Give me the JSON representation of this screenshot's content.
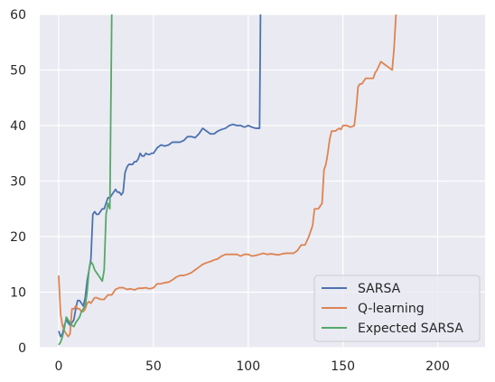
{
  "chart_data": {
    "type": "line",
    "title": "",
    "xlabel": "",
    "ylabel": "",
    "xlim": [
      -10,
      225
    ],
    "ylim": [
      0,
      60
    ],
    "xticks": [
      0,
      50,
      100,
      150,
      200
    ],
    "yticks": [
      0,
      10,
      20,
      30,
      40,
      50,
      60
    ],
    "grid": true,
    "legend": "bottom-right",
    "background": "#EAEAF2",
    "series": [
      {
        "name": "SARSA",
        "color": "#4C72B0",
        "points": [
          [
            0,
            3
          ],
          [
            1,
            2
          ],
          [
            2,
            2.5
          ],
          [
            3,
            4
          ],
          [
            4,
            5
          ],
          [
            5,
            4.5
          ],
          [
            6,
            4
          ],
          [
            7,
            4.5
          ],
          [
            8,
            5
          ],
          [
            9,
            7
          ],
          [
            10,
            8.5
          ],
          [
            11,
            8.5
          ],
          [
            12,
            8
          ],
          [
            13,
            7.5
          ],
          [
            14,
            9
          ],
          [
            15,
            12
          ],
          [
            16,
            14
          ],
          [
            17,
            16
          ],
          [
            18,
            24
          ],
          [
            19,
            24.5
          ],
          [
            20,
            24
          ],
          [
            21,
            24
          ],
          [
            22,
            24.5
          ],
          [
            23,
            25
          ],
          [
            24,
            25
          ],
          [
            25,
            26
          ],
          [
            26,
            27
          ],
          [
            27,
            27
          ],
          [
            28,
            27.5
          ],
          [
            29,
            28
          ],
          [
            30,
            28.5
          ],
          [
            31,
            28
          ],
          [
            32,
            28
          ],
          [
            33,
            27.5
          ],
          [
            34,
            28
          ],
          [
            35,
            31.5
          ],
          [
            36,
            32.5
          ],
          [
            37,
            33
          ],
          [
            38,
            33
          ],
          [
            39,
            33
          ],
          [
            40,
            33.5
          ],
          [
            41,
            33.5
          ],
          [
            42,
            34
          ],
          [
            43,
            35
          ],
          [
            44,
            34.5
          ],
          [
            45,
            34.5
          ],
          [
            46,
            35
          ],
          [
            47,
            34.8
          ],
          [
            48,
            34.8
          ],
          [
            49,
            35
          ],
          [
            50,
            35
          ],
          [
            52,
            36
          ],
          [
            54,
            36.5
          ],
          [
            56,
            36.3
          ],
          [
            58,
            36.5
          ],
          [
            60,
            37
          ],
          [
            62,
            37
          ],
          [
            64,
            37
          ],
          [
            66,
            37.3
          ],
          [
            68,
            38
          ],
          [
            70,
            38
          ],
          [
            72,
            37.8
          ],
          [
            74,
            38.5
          ],
          [
            76,
            39.5
          ],
          [
            78,
            39
          ],
          [
            80,
            38.5
          ],
          [
            82,
            38.5
          ],
          [
            84,
            39
          ],
          [
            86,
            39.3
          ],
          [
            88,
            39.5
          ],
          [
            90,
            40
          ],
          [
            92,
            40.2
          ],
          [
            94,
            40
          ],
          [
            96,
            40
          ],
          [
            98,
            39.7
          ],
          [
            100,
            40
          ],
          [
            102,
            39.7
          ],
          [
            104,
            39.5
          ],
          [
            106,
            39.5
          ],
          [
            106.5,
            60
          ]
        ]
      },
      {
        "name": "Q-learning",
        "color": "#DD8452",
        "points": [
          [
            0,
            13
          ],
          [
            1,
            6
          ],
          [
            2,
            4
          ],
          [
            3,
            3
          ],
          [
            4,
            2.5
          ],
          [
            5,
            2
          ],
          [
            6,
            2.5
          ],
          [
            7,
            7
          ],
          [
            8,
            7
          ],
          [
            9,
            7.5
          ],
          [
            10,
            7
          ],
          [
            11,
            7
          ],
          [
            12,
            6.5
          ],
          [
            13,
            6.5
          ],
          [
            14,
            7
          ],
          [
            15,
            8
          ],
          [
            16,
            8.3
          ],
          [
            17,
            8
          ],
          [
            18,
            8.5
          ],
          [
            19,
            9
          ],
          [
            20,
            9
          ],
          [
            22,
            8.7
          ],
          [
            24,
            8.7
          ],
          [
            26,
            9.5
          ],
          [
            28,
            9.5
          ],
          [
            30,
            10.5
          ],
          [
            32,
            10.8
          ],
          [
            34,
            10.8
          ],
          [
            36,
            10.5
          ],
          [
            38,
            10.6
          ],
          [
            40,
            10.4
          ],
          [
            42,
            10.7
          ],
          [
            44,
            10.7
          ],
          [
            46,
            10.8
          ],
          [
            48,
            10.6
          ],
          [
            50,
            10.8
          ],
          [
            52,
            11.5
          ],
          [
            54,
            11.5
          ],
          [
            56,
            11.7
          ],
          [
            58,
            11.8
          ],
          [
            60,
            12.2
          ],
          [
            62,
            12.7
          ],
          [
            64,
            13
          ],
          [
            66,
            13
          ],
          [
            68,
            13.2
          ],
          [
            70,
            13.5
          ],
          [
            72,
            14
          ],
          [
            74,
            14.5
          ],
          [
            76,
            15
          ],
          [
            78,
            15.3
          ],
          [
            80,
            15.5
          ],
          [
            82,
            15.8
          ],
          [
            84,
            16
          ],
          [
            86,
            16.5
          ],
          [
            88,
            16.8
          ],
          [
            90,
            16.8
          ],
          [
            92,
            16.8
          ],
          [
            94,
            16.8
          ],
          [
            96,
            16.5
          ],
          [
            98,
            16.8
          ],
          [
            100,
            16.8
          ],
          [
            102,
            16.5
          ],
          [
            104,
            16.6
          ],
          [
            106,
            16.8
          ],
          [
            108,
            17
          ],
          [
            110,
            16.8
          ],
          [
            112,
            16.9
          ],
          [
            114,
            16.8
          ],
          [
            116,
            16.7
          ],
          [
            118,
            16.9
          ],
          [
            120,
            17
          ],
          [
            122,
            17
          ],
          [
            124,
            17
          ],
          [
            126,
            17.5
          ],
          [
            128,
            18.5
          ],
          [
            130,
            18.5
          ],
          [
            132,
            20
          ],
          [
            133,
            21
          ],
          [
            134,
            22
          ],
          [
            135,
            25
          ],
          [
            136,
            25
          ],
          [
            137,
            25
          ],
          [
            138,
            25.5
          ],
          [
            139,
            26
          ],
          [
            140,
            32
          ],
          [
            141,
            33
          ],
          [
            142,
            35
          ],
          [
            143,
            37.5
          ],
          [
            144,
            39
          ],
          [
            146,
            39
          ],
          [
            148,
            39.5
          ],
          [
            149,
            39.3
          ],
          [
            150,
            40
          ],
          [
            152,
            40
          ],
          [
            154,
            39.7
          ],
          [
            156,
            40
          ],
          [
            157,
            43
          ],
          [
            158,
            47
          ],
          [
            159,
            47.5
          ],
          [
            160,
            47.5
          ],
          [
            161,
            48
          ],
          [
            162,
            48.5
          ],
          [
            164,
            48.5
          ],
          [
            166,
            48.5
          ],
          [
            167,
            49.5
          ],
          [
            168,
            50
          ],
          [
            170,
            51.5
          ],
          [
            172,
            51
          ],
          [
            174,
            50.5
          ],
          [
            176,
            50
          ],
          [
            177,
            54
          ],
          [
            178,
            60
          ]
        ]
      },
      {
        "name": "Expected SARSA",
        "color": "#55A868",
        "points": [
          [
            0,
            0.5
          ],
          [
            1,
            1
          ],
          [
            2,
            2
          ],
          [
            3,
            3.5
          ],
          [
            4,
            5.5
          ],
          [
            5,
            5
          ],
          [
            6,
            4.5
          ],
          [
            7,
            4
          ],
          [
            8,
            3.8
          ],
          [
            9,
            4.5
          ],
          [
            10,
            5
          ],
          [
            11,
            5.5
          ],
          [
            12,
            6.5
          ],
          [
            13,
            7
          ],
          [
            14,
            7.5
          ],
          [
            15,
            10
          ],
          [
            16,
            14
          ],
          [
            17,
            15.5
          ],
          [
            18,
            15
          ],
          [
            19,
            14
          ],
          [
            20,
            13.5
          ],
          [
            21,
            13
          ],
          [
            22,
            12.5
          ],
          [
            23,
            12
          ],
          [
            24,
            14
          ],
          [
            25,
            24
          ],
          [
            26,
            26
          ],
          [
            27,
            25
          ],
          [
            28,
            60
          ]
        ]
      }
    ]
  }
}
